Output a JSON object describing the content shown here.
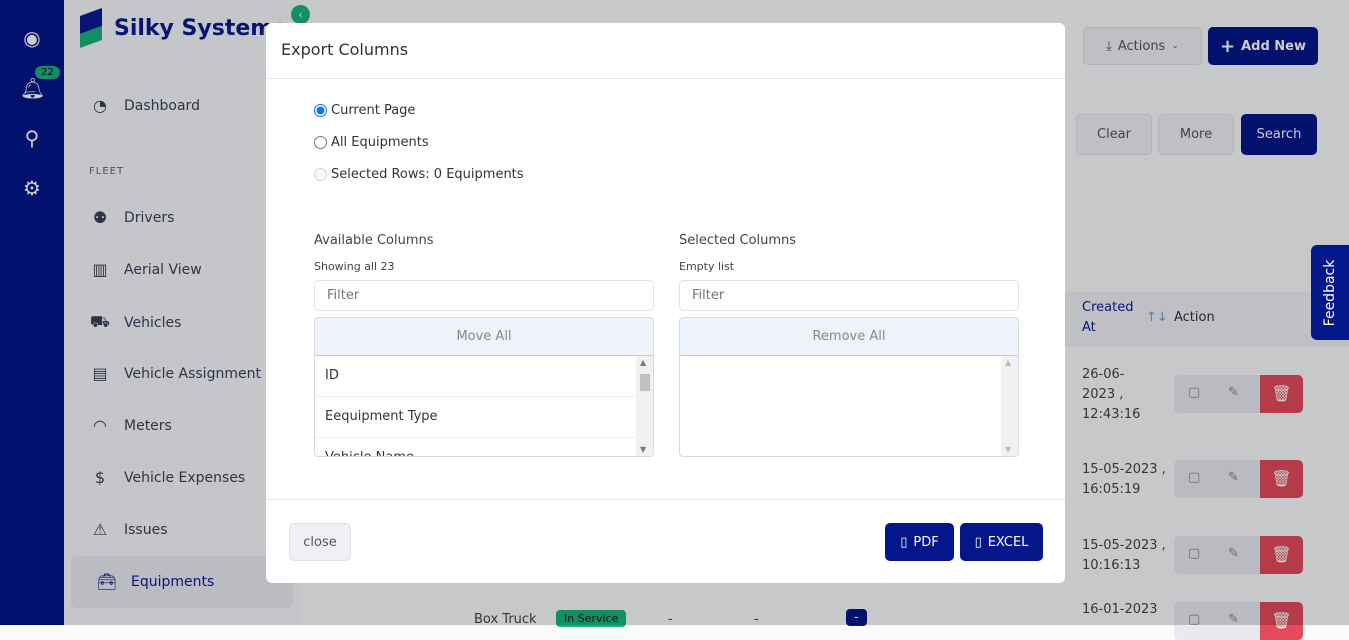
{
  "rail": {
    "notifications_count": "22",
    "icons": [
      "user-circle-icon",
      "bell-icon",
      "search-icon",
      "gear-icon"
    ]
  },
  "brand": {
    "name": "Silky Systems"
  },
  "sidebar": {
    "section": "FLEET",
    "items": [
      {
        "label": "Dashboard",
        "icon": "gauge-icon"
      },
      {
        "label": "Drivers",
        "icon": "users-icon"
      },
      {
        "label": "Aerial View",
        "icon": "map-icon"
      },
      {
        "label": "Vehicles",
        "icon": "truck-icon"
      },
      {
        "label": "Vehicle Assignment",
        "icon": "clipboard-icon"
      },
      {
        "label": "Meters",
        "icon": "meter-icon"
      },
      {
        "label": "Vehicle Expenses",
        "icon": "dollar-icon"
      },
      {
        "label": "Issues",
        "icon": "car-alert-icon"
      },
      {
        "label": "Equipments",
        "icon": "toolbox-icon",
        "active": true
      }
    ]
  },
  "header": {
    "actions_label": "Actions",
    "add_new_label": "Add New"
  },
  "search_bar": {
    "clear": "Clear",
    "more": "More",
    "search": "Search"
  },
  "table": {
    "headers": {
      "created_at": "Created At",
      "action": "Action"
    },
    "rows": [
      {
        "created": "26-06-2023 , 12:43:16"
      },
      {
        "created": "15-05-2023 , 16:05:19"
      },
      {
        "created": "15-05-2023 , 10:16:13"
      },
      {
        "created": "16-01-2023",
        "type": "Box Truck",
        "status": "In Service",
        "c1": "-",
        "c2": "-",
        "c3": "-"
      }
    ]
  },
  "feedback": "Feedback",
  "modal": {
    "title": "Export Columns",
    "options": [
      "Current Page",
      "All Equipments",
      "Selected Rows: 0 Equipments"
    ],
    "selected_option": "Current Page",
    "available": {
      "title": "Available Columns",
      "info": "Showing all 23",
      "filter_placeholder": "Filter",
      "move_all": "Move All",
      "items": [
        "ID",
        "Eequipment Type",
        "Vehicle Name"
      ]
    },
    "selected": {
      "title": "Selected Columns",
      "info": "Empty list",
      "filter_placeholder": "Filter",
      "remove_all": "Remove All",
      "items": []
    },
    "close": "close",
    "pdf": "PDF",
    "excel": "EXCEL"
  },
  "colors": {
    "primary": "#03168a",
    "accent": "#17b57e",
    "danger": "#e34a5c"
  }
}
